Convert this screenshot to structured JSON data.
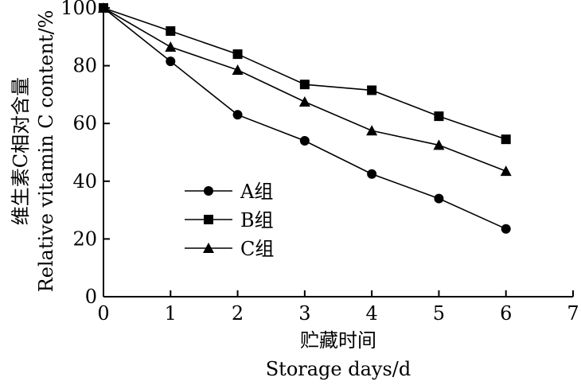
{
  "chart_data": {
    "type": "line",
    "x": [
      0,
      1,
      2,
      3,
      4,
      5,
      6
    ],
    "xlim": [
      0,
      7
    ],
    "ylim": [
      0,
      100
    ],
    "x_ticks": [
      "0",
      "1",
      "2",
      "3",
      "4",
      "5",
      "6",
      "7"
    ],
    "y_ticks": [
      "0",
      "20",
      "40",
      "60",
      "80",
      "100"
    ],
    "xlabel_cn": "贮藏时间",
    "xlabel_en": "Storage days/d",
    "ylabel_cn": "维生素C相对含量",
    "ylabel_en": "Relative vitamin C content/%",
    "legend_position": "left-middle",
    "grid": false,
    "series": [
      {
        "name": "A组",
        "marker": "circle",
        "values": [
          100,
          81.5,
          63,
          54,
          42.5,
          34,
          23.5
        ]
      },
      {
        "name": "B组",
        "marker": "square",
        "values": [
          100,
          92,
          84,
          73.5,
          71.5,
          62.5,
          54.5
        ]
      },
      {
        "name": "C组",
        "marker": "triangle",
        "values": [
          100,
          86.5,
          78.5,
          67.5,
          57.5,
          52.5,
          43.5
        ]
      }
    ]
  }
}
